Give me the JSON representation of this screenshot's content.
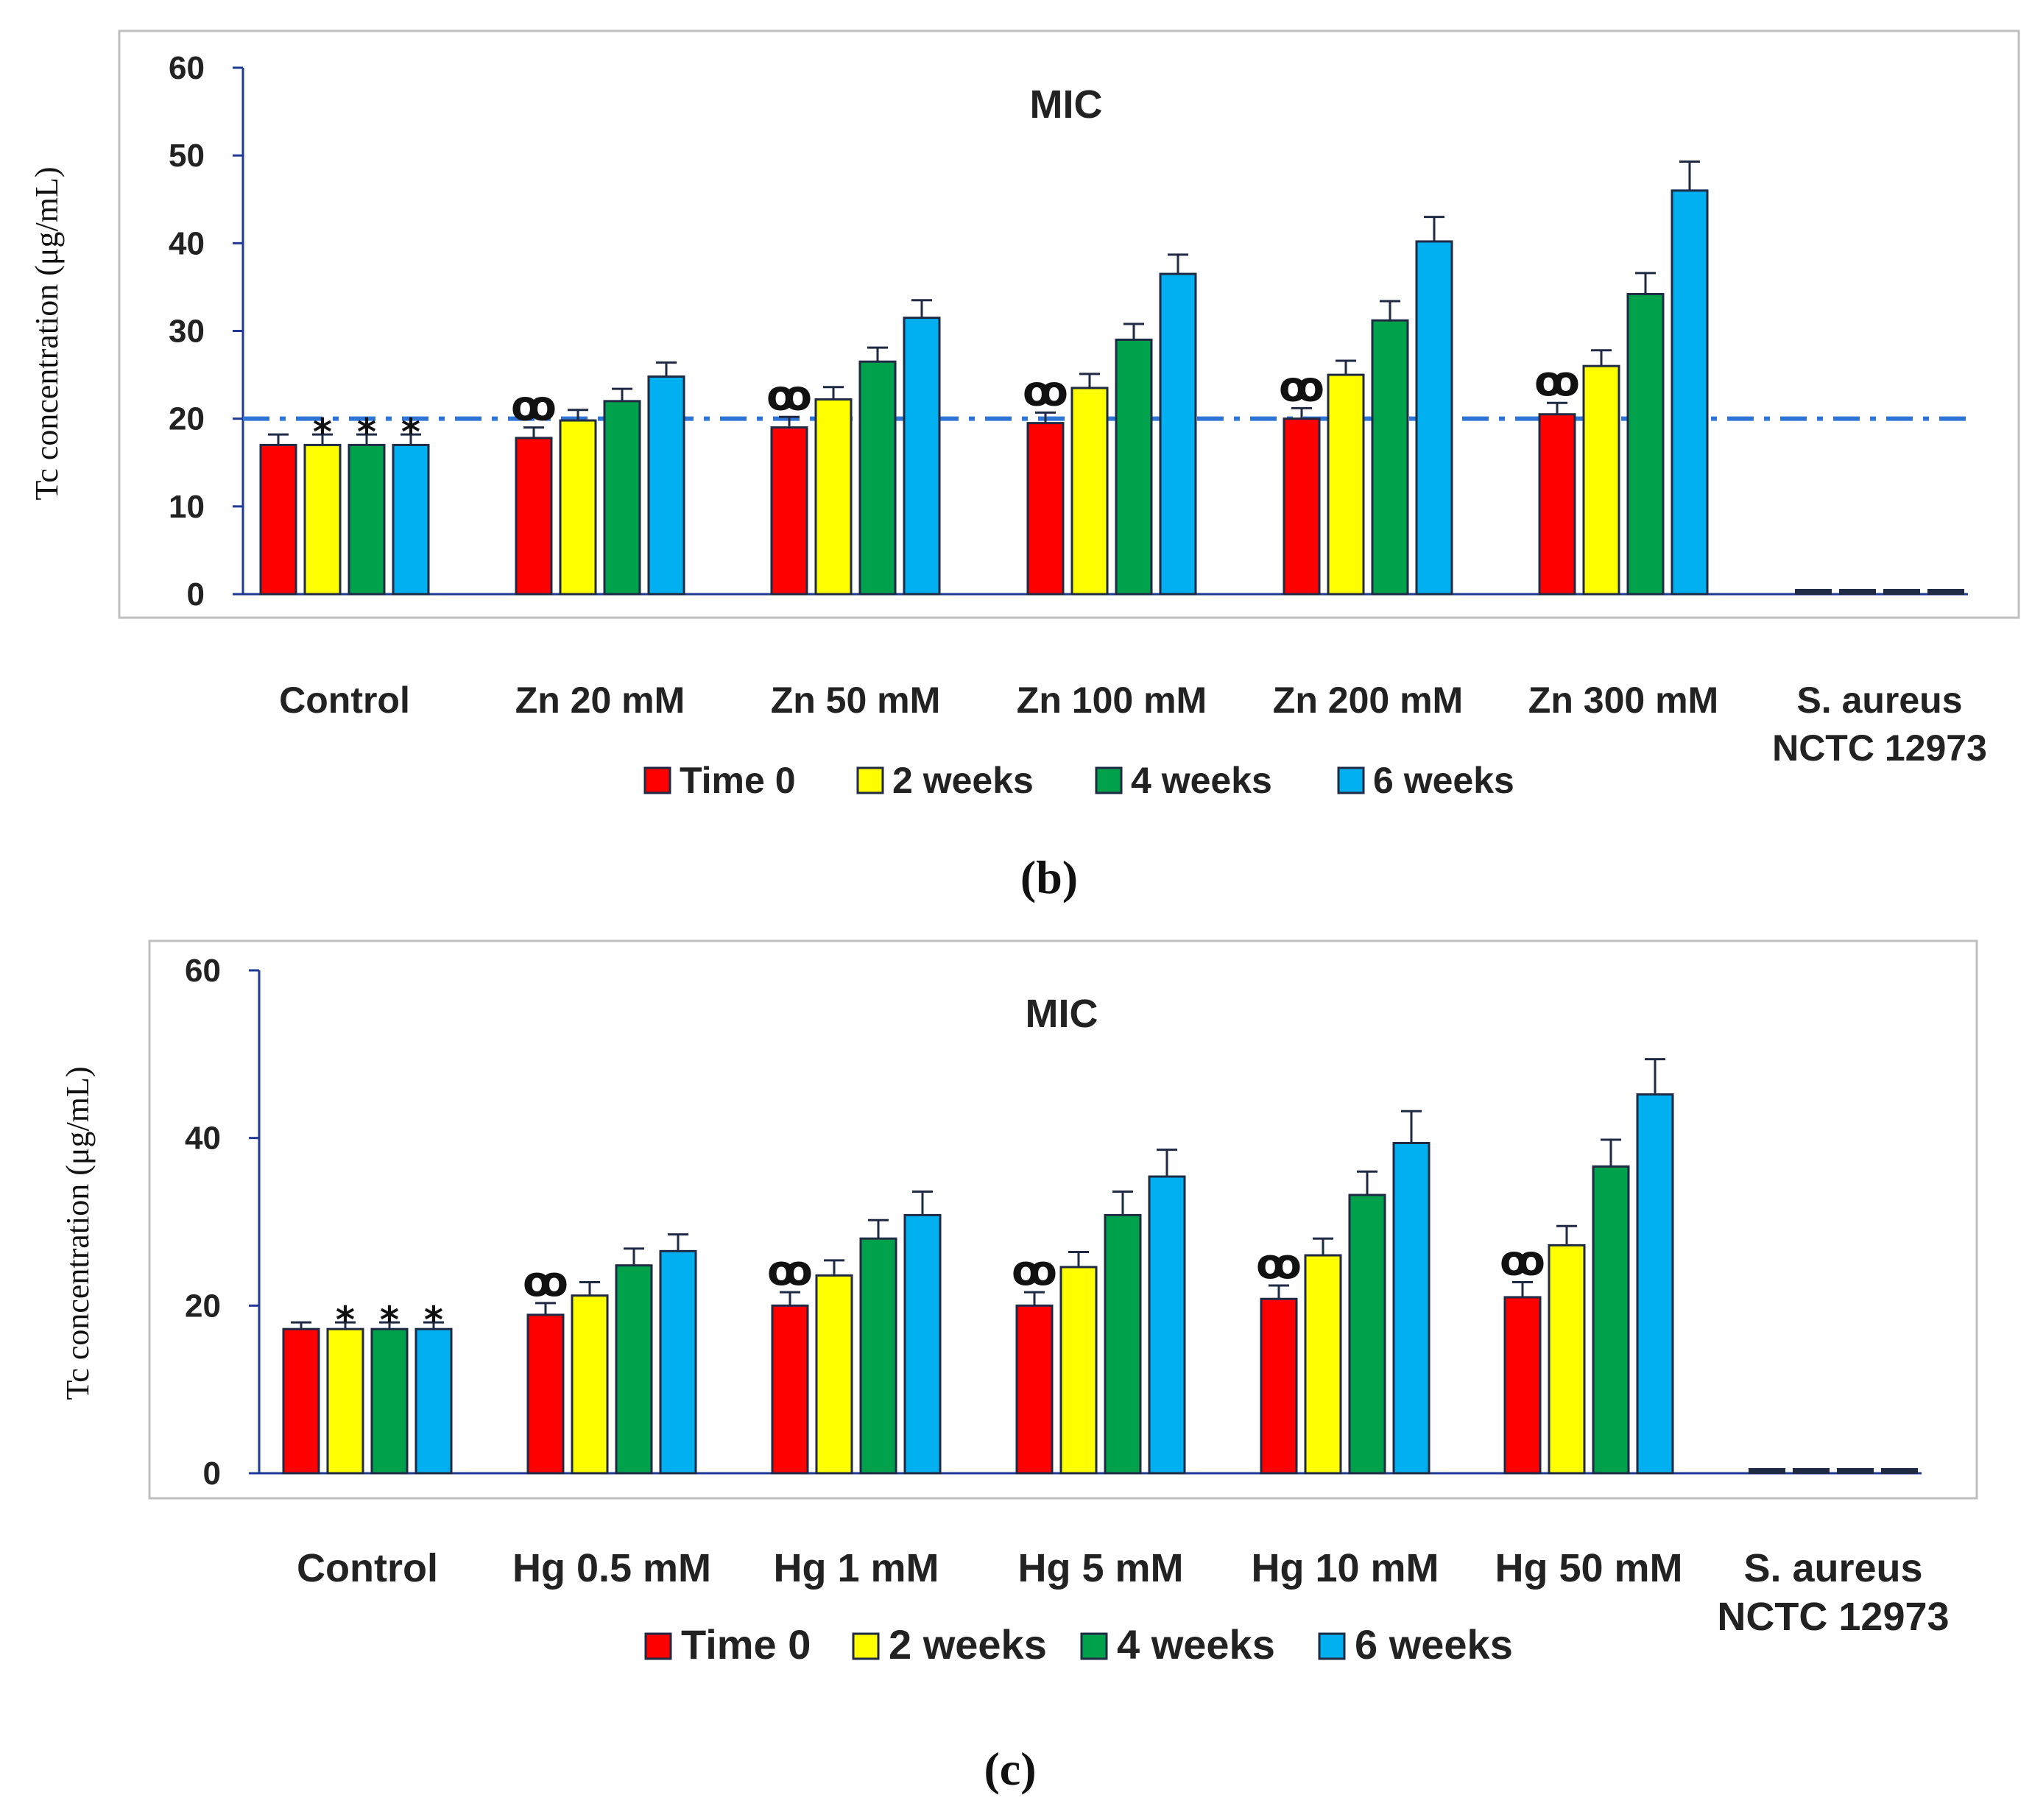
{
  "colors": {
    "time0": "#ff0000",
    "w2": "#ffff00",
    "w4": "#00a14b",
    "w6": "#00b0f0",
    "threshold": "#2e75d6",
    "frame": "#bfbfbf",
    "axis": "#1f3a93"
  },
  "chart_data": [
    {
      "type": "bar",
      "title": "MIC",
      "ylabel": "Tc concentration (μg/mL)",
      "caption": "(b)",
      "ylim": [
        0,
        60
      ],
      "yticks": [
        "0",
        "10",
        "20",
        "30",
        "40",
        "50",
        "60"
      ],
      "categories": [
        "Control",
        "Zn 20 mM",
        "Zn 50 mM",
        "Zn 100 mM",
        "Zn 200 mM",
        "Zn 300 mM",
        "S. aureus NCTC 12973"
      ],
      "series": [
        {
          "name": "Time 0",
          "values": [
            17,
            17.8,
            19,
            19.5,
            20,
            20.5,
            0.2
          ],
          "errors": [
            1.2,
            1.2,
            1.2,
            1.2,
            1.2,
            1.3,
            0
          ]
        },
        {
          "name": "2 weeks",
          "values": [
            17,
            19.8,
            22.2,
            23.5,
            25,
            26,
            0.2
          ],
          "errors": [
            1.2,
            1.2,
            1.4,
            1.6,
            1.6,
            1.8,
            0
          ]
        },
        {
          "name": "4 weeks",
          "values": [
            17,
            22,
            26.5,
            29,
            31.2,
            34.2,
            0.2
          ],
          "errors": [
            1.2,
            1.4,
            1.6,
            1.8,
            2.2,
            2.4,
            0
          ]
        },
        {
          "name": "6 weeks",
          "values": [
            17,
            24.8,
            31.5,
            36.5,
            40.2,
            46,
            0.2
          ],
          "errors": [
            1.2,
            1.6,
            2.0,
            2.2,
            2.8,
            3.3,
            0
          ]
        }
      ],
      "threshold": 20,
      "annotations": [
        {
          "category": 0,
          "series": 1,
          "symbol": "*"
        },
        {
          "category": 0,
          "series": 2,
          "symbol": "*"
        },
        {
          "category": 0,
          "series": 3,
          "symbol": "*"
        },
        {
          "category": 1,
          "series": 0,
          "symbol": "ꝏ"
        },
        {
          "category": 2,
          "series": 0,
          "symbol": "ꝏ"
        },
        {
          "category": 3,
          "series": 0,
          "symbol": "ꝏ"
        },
        {
          "category": 4,
          "series": 0,
          "symbol": "ꝏ"
        },
        {
          "category": 5,
          "series": 0,
          "symbol": "ꝏ"
        }
      ],
      "legend": [
        "Time 0",
        "2 weeks",
        "4 weeks",
        "6 weeks"
      ]
    },
    {
      "type": "bar",
      "title": "MIC",
      "ylabel": "Tc concentration (μg/mL)",
      "caption": "(c)",
      "ylim": [
        0,
        60
      ],
      "yticks": [
        "0",
        "20",
        "40",
        "60"
      ],
      "categories": [
        "Control",
        "Hg 0.5 mM",
        "Hg 1 mM",
        "Hg 5 mM",
        "Hg 10 mM",
        "Hg 50 mM",
        "S. aureus NCTC 12973"
      ],
      "series": [
        {
          "name": "Time 0",
          "values": [
            17.2,
            18.9,
            20,
            20,
            20.8,
            21,
            0.2
          ],
          "errors": [
            0.8,
            1.4,
            1.6,
            1.6,
            1.6,
            1.8,
            0
          ]
        },
        {
          "name": "2 weeks",
          "values": [
            17.2,
            21.2,
            23.6,
            24.6,
            26,
            27.2,
            0.2
          ],
          "errors": [
            0.8,
            1.6,
            1.8,
            1.8,
            2.0,
            2.3,
            0
          ]
        },
        {
          "name": "4 weeks",
          "values": [
            17.2,
            24.8,
            28,
            30.8,
            33.2,
            36.6,
            0.2
          ],
          "errors": [
            0.8,
            2.0,
            2.2,
            2.8,
            2.8,
            3.2,
            0
          ]
        },
        {
          "name": "6 weeks",
          "values": [
            17.2,
            26.5,
            30.8,
            35.4,
            39.4,
            45.2,
            0.2
          ],
          "errors": [
            0.8,
            2.0,
            2.8,
            3.2,
            3.8,
            4.2,
            0
          ]
        }
      ],
      "annotations": [
        {
          "category": 0,
          "series": 1,
          "symbol": "*"
        },
        {
          "category": 0,
          "series": 2,
          "symbol": "*"
        },
        {
          "category": 0,
          "series": 3,
          "symbol": "*"
        },
        {
          "category": 1,
          "series": 0,
          "symbol": "ꝏ"
        },
        {
          "category": 2,
          "series": 0,
          "symbol": "ꝏ"
        },
        {
          "category": 3,
          "series": 0,
          "symbol": "ꝏ"
        },
        {
          "category": 4,
          "series": 0,
          "symbol": "ꝏ"
        },
        {
          "category": 5,
          "series": 0,
          "symbol": "ꝏ"
        }
      ],
      "legend": [
        "Time 0",
        "2 weeks",
        "4 weeks",
        "6 weeks"
      ]
    }
  ]
}
